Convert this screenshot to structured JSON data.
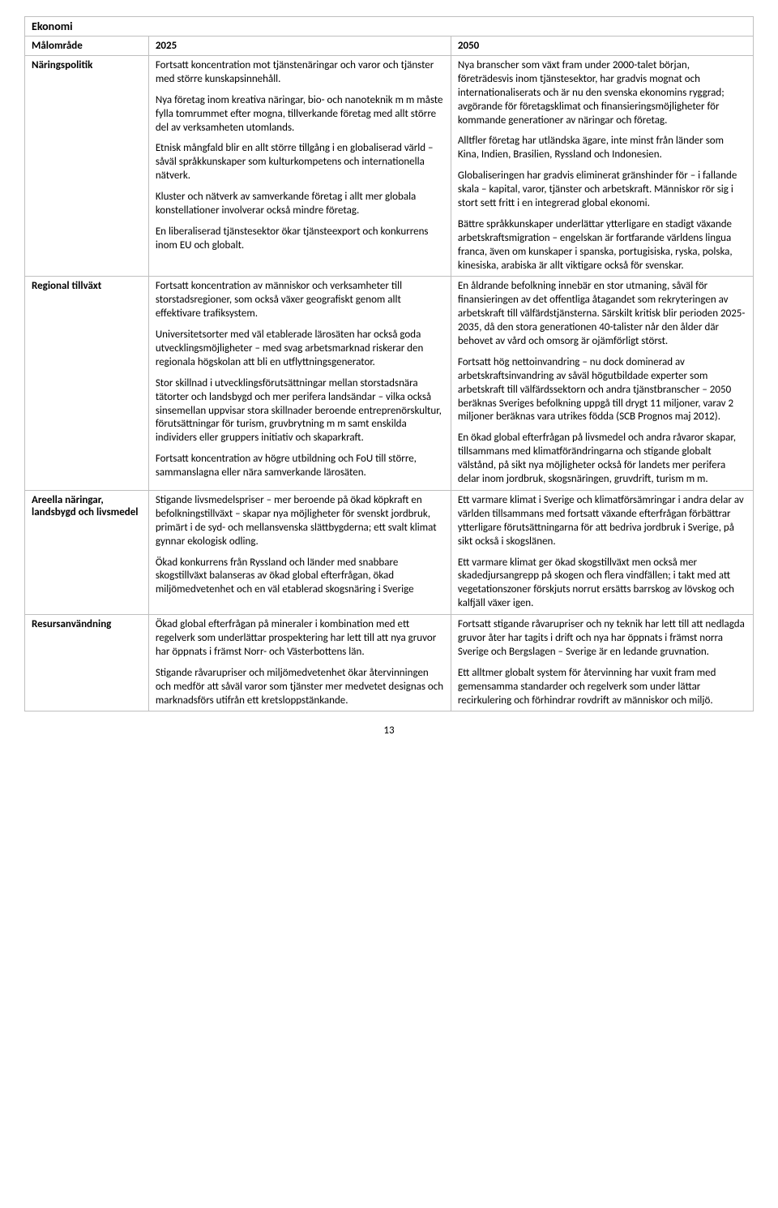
{
  "section_title": "Ekonomi",
  "headers": {
    "col0": "Målområde",
    "col1": "2025",
    "col2": "2050"
  },
  "rows": [
    {
      "label": "Näringspolitik",
      "c2025": [
        "Fortsatt koncentration mot tjänstenäringar och varor och tjänster med större kunskapsinnehåll.",
        "Nya företag inom kreativa näringar, bio- och nanoteknik m m måste fylla tomrummet efter mogna, tillverkande företag med allt större del av verksamheten utomlands.",
        "Etnisk mångfald blir en allt större tillgång i en globaliserad värld – såväl språkkunskaper som kulturkompetens och internationella nätverk.",
        "Kluster och nätverk av samverkande företag i allt mer globala konstellationer involverar också mindre företag.",
        "En liberaliserad tjänstesektor ökar tjänsteexport och konkurrens inom EU och globalt."
      ],
      "c2050": [
        "Nya branscher som växt fram under 2000-talet början, företrädesvis inom tjänstesektor, har gradvis mognat och internationaliserats och är nu den svenska ekonomins ryggrad; avgörande för företagsklimat och finansieringsmöjligheter för kommande generationer av näringar och företag.",
        "Alltfler företag har utländska ägare, inte minst från länder som Kina, Indien, Brasilien, Ryssland och Indonesien.",
        "Globaliseringen har gradvis eliminerat gränshinder för – i fallande skala – kapital, varor, tjänster och arbetskraft. Människor rör sig i stort sett fritt i en integrerad global ekonomi.",
        "Bättre språkkunskaper underlättar ytterligare en stadigt växande arbetskraftsmigration – engelskan är fortfarande världens lingua franca, även om kunskaper i spanska, portugisiska, ryska, polska, kinesiska, arabiska är allt viktigare också för svenskar."
      ]
    },
    {
      "label": "Regional tillväxt",
      "c2025": [
        "Fortsatt koncentration av människor och verksamheter till storstadsregioner, som också växer geografiskt genom allt effektivare trafiksystem.",
        "Universitetsorter med väl etablerade lärosäten har också goda utvecklingsmöjligheter – med svag arbetsmarknad riskerar den regionala högskolan att bli en utflyttningsgenerator.",
        "Stor skillnad i utvecklingsförutsättningar mellan storstadsnära tätorter och landsbygd och mer perifera landsändar – vilka också sinsemellan uppvisar stora skillnader beroende entreprenörskultur, förutsättningar för turism, gruvbrytning m m samt enskilda individers eller gruppers initiativ och skaparkraft.",
        "Fortsatt koncentration av högre utbildning och FoU till större, sammanslagna eller nära samverkande lärosäten."
      ],
      "c2050": [
        "En åldrande befolkning innebär en stor utmaning, såväl för finansieringen av det offentliga åtagandet som rekryteringen av arbetskraft till välfärdstjänsterna. Särskilt kritisk blir perioden 2025-2035, då den stora generationen 40-talister når den ålder där behovet av vård och omsorg är ojämförligt störst.",
        "Fortsatt hög nettoinvandring – nu dock dominerad av arbetskraftsinvandring av såväl högutbildade experter som arbetskraft till välfärdssektorn och andra tjänstbranscher – 2050 beräknas Sveriges befolkning uppgå till drygt 11 miljoner, varav 2 miljoner beräknas vara utrikes födda (SCB Prognos maj 2012).",
        "En ökad global efterfrågan på livsmedel och andra råvaror skapar, tillsammans med klimatförändringarna och stigande globalt välstånd, på sikt nya möjligheter också för landets mer perifera delar inom jordbruk, skogsnäringen, gruvdrift, turism m m."
      ]
    },
    {
      "label": "Areella näringar, landsbygd och livsmedel",
      "c2025": [
        "Stigande livsmedelspriser – mer beroende på ökad köpkraft en befolkningstillväxt – skapar nya möjligheter för svenskt jordbruk, primärt i de syd- och mellansvenska slättbygderna; ett svalt klimat gynnar ekologisk odling.",
        "Ökad konkurrens från Ryssland och länder med snabbare skogstillväxt balanseras av ökad global efterfrågan, ökad miljömedvetenhet och en väl etablerad skogsnäring i Sverige"
      ],
      "c2050": [
        "Ett varmare klimat i Sverige och klimatförsämringar i andra delar av världen tillsammans med fortsatt växande efterfrågan förbättrar ytterligare förutsättningarna för att bedriva jordbruk i Sverige, på sikt också i skogslänen.",
        "Ett varmare klimat ger ökad skogstillväxt men också mer skadedjursangrepp på skogen och flera vindfällen; i takt med att vegetationszoner förskjuts norrut ersätts barrskog av lövskog och kalfjäll växer igen."
      ]
    },
    {
      "label": "Resursanvändning",
      "c2025": [
        "Ökad global efterfrågan på mineraler i kombination med ett regelverk som underlättar prospektering har lett till att nya gruvor har öppnats i främst Norr- och Västerbottens län.",
        "Stigande råvarupriser och miljömedvetenhet ökar återvinningen och medför att såväl varor som tjänster mer medvetet designas och marknadsförs utifrån ett kretsloppstänkande."
      ],
      "c2050": [
        "Fortsatt stigande råvarupriser och ny teknik har lett till att nedlagda gruvor åter har tagits i drift och nya har öppnats i främst norra Sverige och Bergslagen – Sverige är en ledande gruvnation.",
        "Ett alltmer globalt system för återvinning har vuxit fram med gemensamma standarder och regelverk som under lättar recirkulering och förhindrar rovdrift av människor och miljö."
      ]
    }
  ],
  "page_number": "13"
}
